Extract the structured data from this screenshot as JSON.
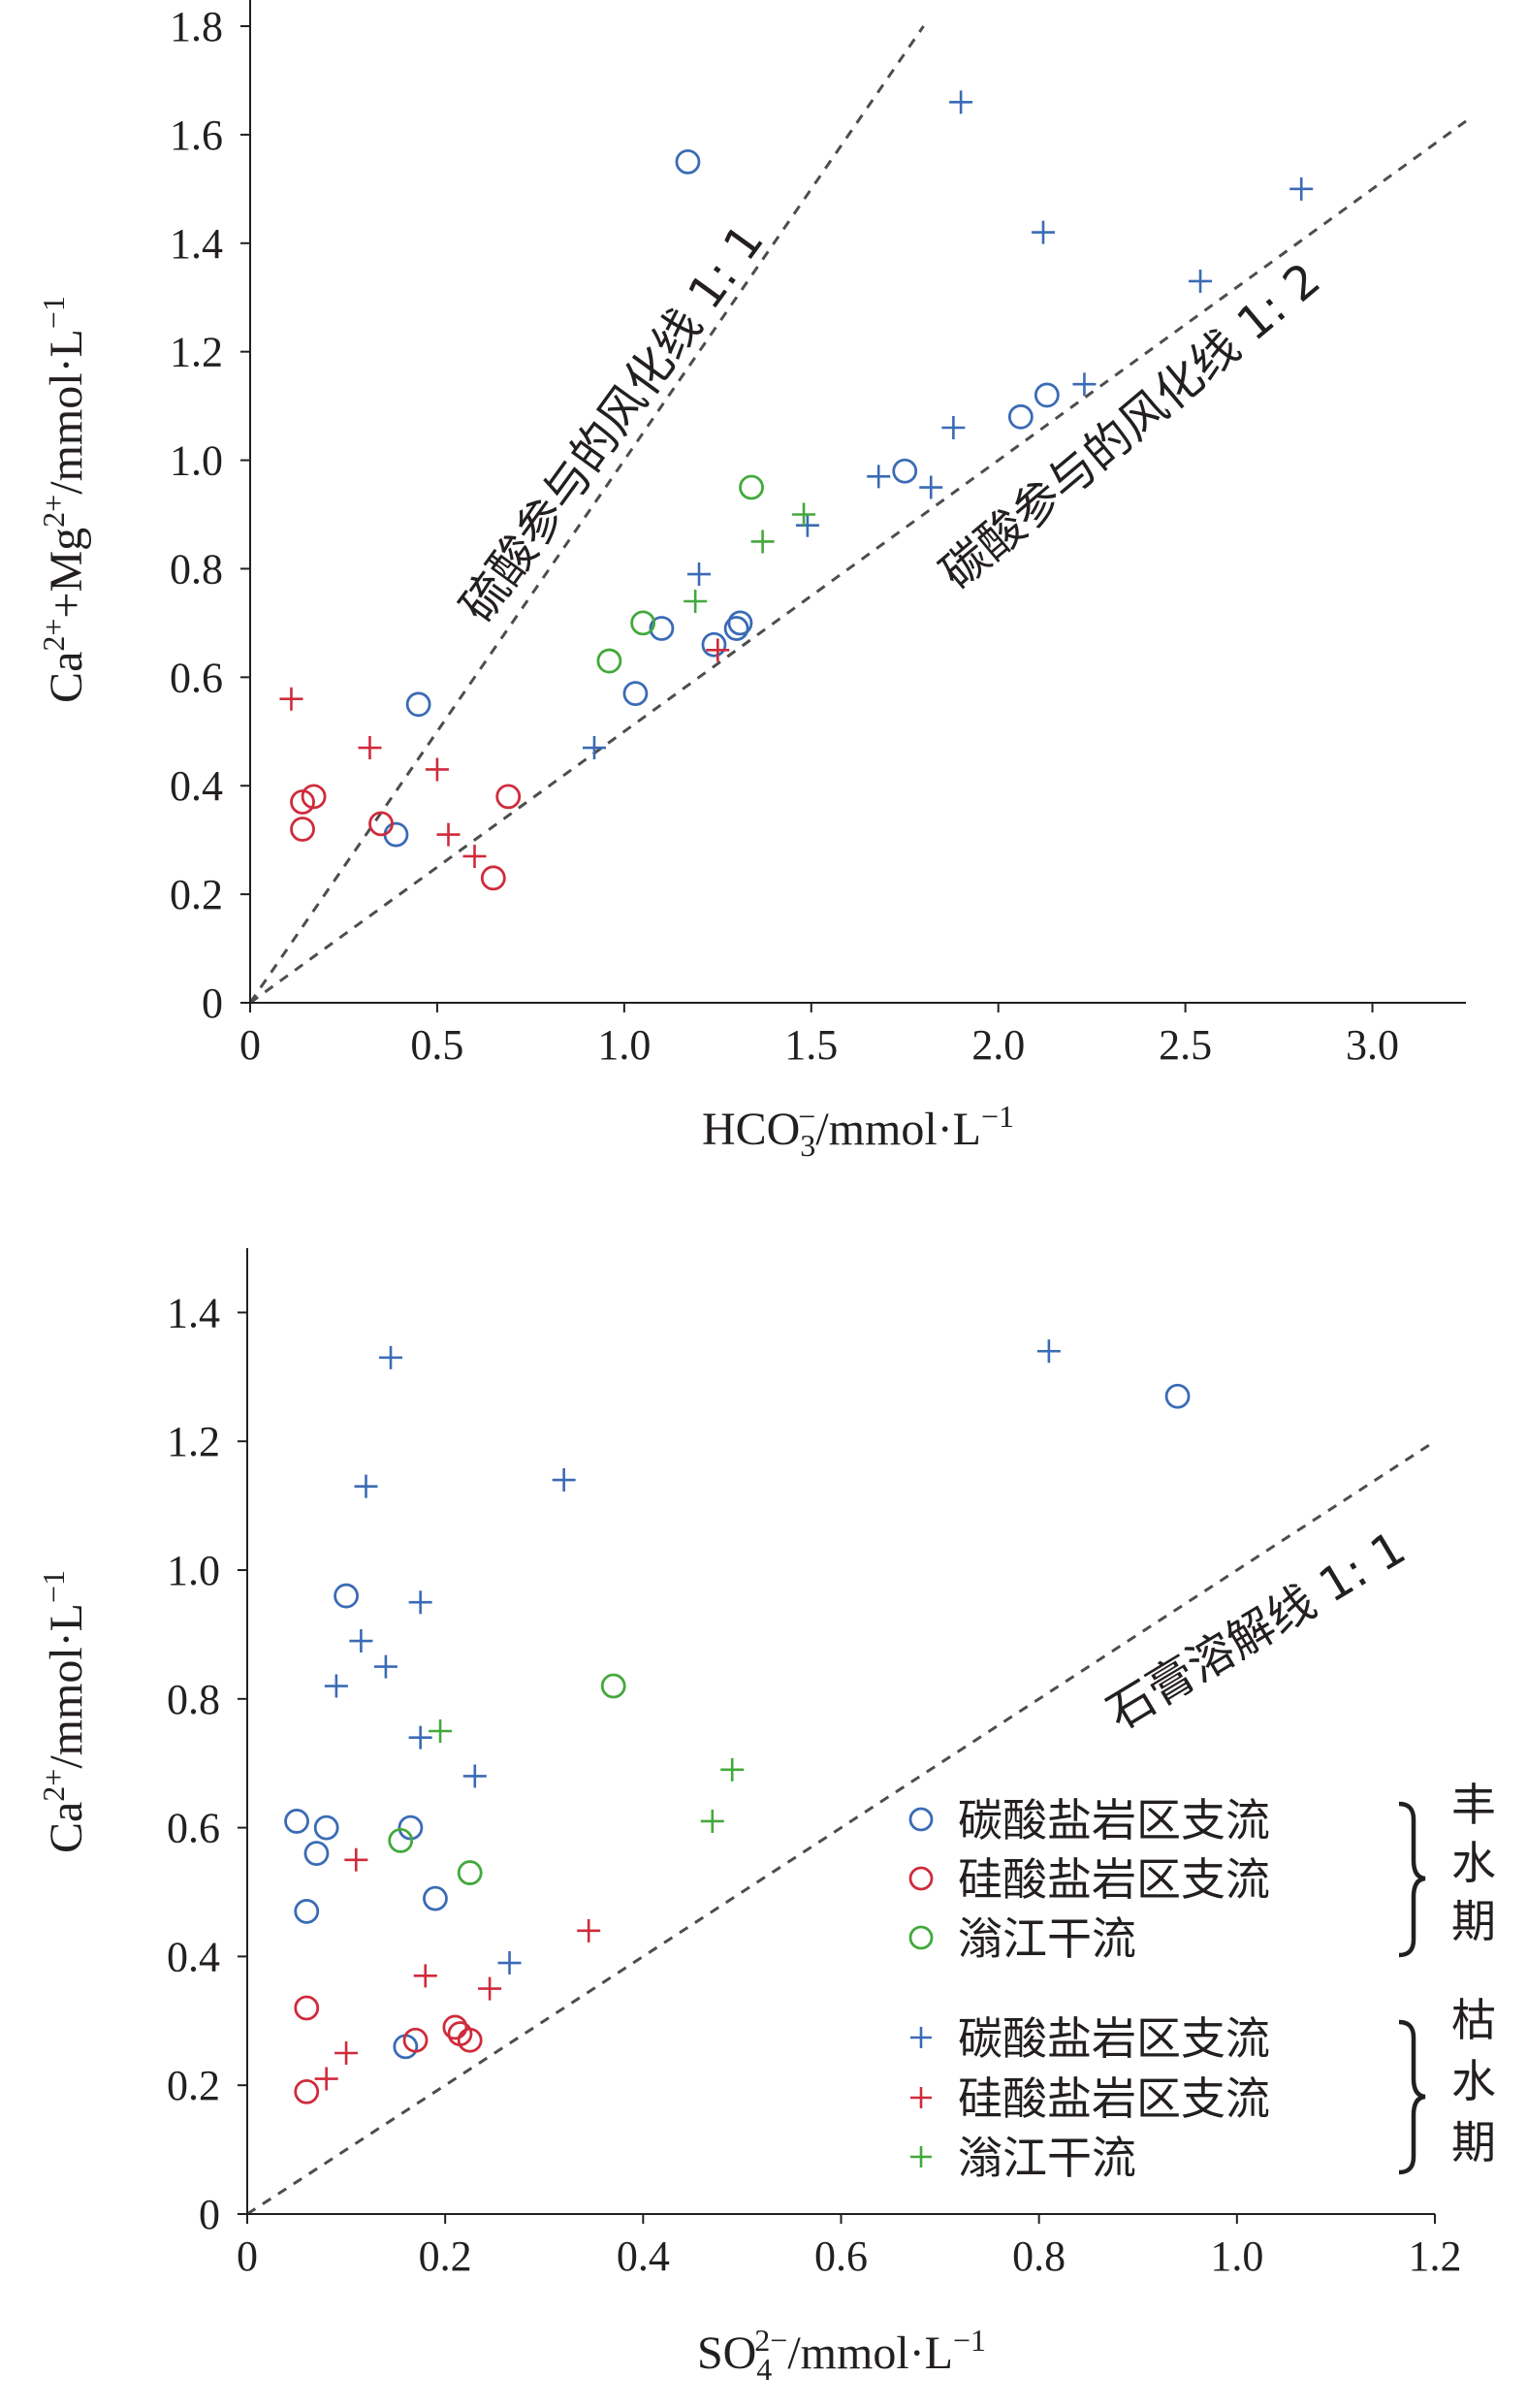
{
  "colors": {
    "blue": "#3a6bb5",
    "red": "#cf2b3b",
    "green": "#42a93b",
    "axis": "#231f20",
    "dash": "#4d4d4d"
  },
  "series_names": [
    "碳酸盐岩区支流",
    "硅酸盐岩区支流",
    "滃江干流",
    "碳酸盐岩区支流",
    "硅酸盐岩区支流",
    "滃江干流"
  ],
  "legend": {
    "groups": [
      {
        "label_chars": [
          "丰",
          "水",
          "期"
        ],
        "marker": "circle",
        "items": [
          {
            "label": "碳酸盐岩区支流",
            "color": "#3a6bb5"
          },
          {
            "label": "硅酸盐岩区支流",
            "color": "#cf2b3b"
          },
          {
            "label": "滃江干流",
            "color": "#42a93b"
          }
        ]
      },
      {
        "label_chars": [
          "枯",
          "水",
          "期"
        ],
        "marker": "plus",
        "items": [
          {
            "label": "碳酸盐岩区支流",
            "color": "#3a6bb5"
          },
          {
            "label": "硅酸盐岩区支流",
            "color": "#cf2b3b"
          },
          {
            "label": "滃江干流",
            "color": "#42a93b"
          }
        ]
      }
    ]
  },
  "chart_data": [
    {
      "type": "scatter",
      "title": "",
      "xlabel": "HCO3−/mmol·L−1",
      "ylabel": "Ca2++Mg2+/mmol·L−1",
      "xlim": [
        0,
        3.25
      ],
      "ylim": [
        0,
        1.8
      ],
      "xticks": [
        0,
        0.5,
        1.0,
        1.5,
        2.0,
        2.5,
        3.0
      ],
      "xtick_labels": [
        "0",
        "0.5",
        "1.0",
        "1.5",
        "2.0",
        "2.5",
        "3.0"
      ],
      "yticks": [
        0,
        0.2,
        0.4,
        0.6,
        0.8,
        1.0,
        1.2,
        1.4,
        1.6,
        1.8
      ],
      "ytick_labels": [
        "0",
        "0.2",
        "0.4",
        "0.6",
        "0.8",
        "1.0",
        "1.2",
        "1.4",
        "1.6",
        "1.8"
      ],
      "reference_lines": [
        {
          "label": "硫酸参与的风化线 1: 1",
          "slope": 1,
          "x_end": 1.8
        },
        {
          "label": "碳酸参与的风化线 1: 2",
          "slope": 0.5,
          "x_end": 3.25
        }
      ],
      "series": [
        {
          "name": "碳酸盐岩区支流",
          "period": "丰水期",
          "marker": "circle",
          "color": "#3a6bb5",
          "x": [
            1.17,
            0.45,
            0.39,
            1.03,
            1.1,
            1.24,
            1.3,
            1.31,
            1.75,
            2.06,
            2.13
          ],
          "y": [
            1.55,
            0.55,
            0.31,
            0.57,
            0.69,
            0.66,
            0.69,
            0.7,
            0.98,
            1.08,
            1.12
          ]
        },
        {
          "name": "硅酸盐岩区支流",
          "period": "丰水期",
          "marker": "circle",
          "color": "#cf2b3b",
          "x": [
            0.14,
            0.17,
            0.14,
            0.35,
            0.69,
            0.65
          ],
          "y": [
            0.37,
            0.38,
            0.32,
            0.33,
            0.38,
            0.23
          ]
        },
        {
          "name": "滃江干流",
          "period": "丰水期",
          "marker": "circle",
          "color": "#42a93b",
          "x": [
            0.96,
            1.05,
            1.34
          ],
          "y": [
            0.63,
            0.7,
            0.95
          ]
        },
        {
          "name": "碳酸盐岩区支流",
          "period": "枯水期",
          "marker": "plus",
          "color": "#3a6bb5",
          "x": [
            1.9,
            2.12,
            2.81,
            2.54,
            2.23,
            1.88,
            1.68,
            1.82,
            1.49,
            1.2,
            0.92
          ],
          "y": [
            1.66,
            1.42,
            1.5,
            1.33,
            1.14,
            1.06,
            0.97,
            0.95,
            0.88,
            0.79,
            0.47
          ]
        },
        {
          "name": "硅酸盐岩区支流",
          "period": "枯水期",
          "marker": "plus",
          "color": "#cf2b3b",
          "x": [
            0.11,
            0.32,
            0.5,
            0.53,
            0.6,
            1.25
          ],
          "y": [
            0.56,
            0.47,
            0.43,
            0.31,
            0.27,
            0.65
          ]
        },
        {
          "name": "滃江干流",
          "period": "枯水期",
          "marker": "plus",
          "color": "#42a93b",
          "x": [
            1.19,
            1.37,
            1.48
          ],
          "y": [
            0.74,
            0.85,
            0.9
          ]
        }
      ]
    },
    {
      "type": "scatter",
      "title": "",
      "xlabel": "SO42−/mmol·L−1",
      "ylabel": "Ca2+/mmol·L−1",
      "xlim": [
        0,
        1.2
      ],
      "ylim": [
        0,
        1.5
      ],
      "xticks": [
        0,
        0.2,
        0.4,
        0.6,
        0.8,
        1.0,
        1.2
      ],
      "xtick_labels": [
        "0",
        "0.2",
        "0.4",
        "0.6",
        "0.8",
        "1.0",
        "1.2"
      ],
      "yticks": [
        0,
        0.2,
        0.4,
        0.6,
        0.8,
        1.0,
        1.2,
        1.4
      ],
      "ytick_labels": [
        "0",
        "0.2",
        "0.4",
        "0.6",
        "0.8",
        "1.0",
        "1.2",
        "1.4"
      ],
      "reference_lines": [
        {
          "label": "石膏溶解线 1: 1",
          "slope": 1,
          "x_end": 1.2
        }
      ],
      "series": [
        {
          "name": "碳酸盐岩区支流",
          "period": "丰水期",
          "marker": "circle",
          "color": "#3a6bb5",
          "x": [
            0.94,
            0.1,
            0.05,
            0.08,
            0.07,
            0.165,
            0.06,
            0.19,
            0.16
          ],
          "y": [
            1.27,
            0.96,
            0.61,
            0.6,
            0.56,
            0.6,
            0.47,
            0.49,
            0.26
          ]
        },
        {
          "name": "硅酸盐岩区支流",
          "period": "丰水期",
          "marker": "circle",
          "color": "#cf2b3b",
          "x": [
            0.06,
            0.06,
            0.17,
            0.21,
            0.215,
            0.225
          ],
          "y": [
            0.32,
            0.19,
            0.27,
            0.29,
            0.28,
            0.27
          ]
        },
        {
          "name": "滃江干流",
          "period": "丰水期",
          "marker": "circle",
          "color": "#42a93b",
          "x": [
            0.37,
            0.155,
            0.225
          ],
          "y": [
            0.82,
            0.58,
            0.53
          ]
        },
        {
          "name": "碳酸盐岩区支流",
          "period": "枯水期",
          "marker": "plus",
          "color": "#3a6bb5",
          "x": [
            0.145,
            0.81,
            0.12,
            0.32,
            0.175,
            0.115,
            0.14,
            0.09,
            0.175,
            0.23,
            0.265
          ],
          "y": [
            1.33,
            1.34,
            1.13,
            1.14,
            0.95,
            0.89,
            0.85,
            0.82,
            0.74,
            0.68,
            0.39
          ]
        },
        {
          "name": "硅酸盐岩区支流",
          "period": "枯水期",
          "marker": "plus",
          "color": "#cf2b3b",
          "x": [
            0.11,
            0.345,
            0.18,
            0.245,
            0.1,
            0.08
          ],
          "y": [
            0.55,
            0.44,
            0.37,
            0.35,
            0.25,
            0.21
          ]
        },
        {
          "name": "滃江干流",
          "period": "枯水期",
          "marker": "plus",
          "color": "#42a93b",
          "x": [
            0.195,
            0.49,
            0.47
          ],
          "y": [
            0.75,
            0.69,
            0.61
          ]
        }
      ]
    }
  ]
}
